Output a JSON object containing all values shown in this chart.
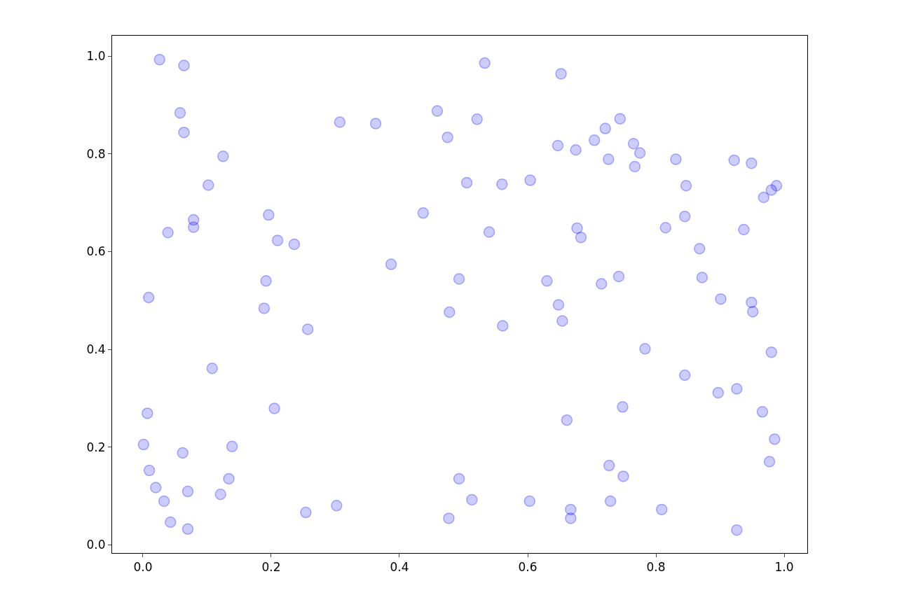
{
  "chart_data": {
    "type": "scatter",
    "marker": "circle",
    "xlim": [
      -0.048,
      1.036
    ],
    "ylim": [
      -0.017,
      1.042
    ],
    "xticks": [
      {
        "value": 0,
        "label": "0.0"
      },
      {
        "value": 0.2,
        "label": "0.2"
      },
      {
        "value": 0.4,
        "label": "0.4"
      },
      {
        "value": 0.6,
        "label": "0.6"
      },
      {
        "value": 0.8,
        "label": "0.8"
      },
      {
        "value": 1,
        "label": "1.0"
      }
    ],
    "yticks": [
      {
        "value": 0,
        "label": "0.0"
      },
      {
        "value": 0.2,
        "label": "0.2"
      },
      {
        "value": 0.4,
        "label": "0.4"
      },
      {
        "value": 0.6,
        "label": "0.6"
      },
      {
        "value": 0.8,
        "label": "0.8"
      },
      {
        "value": 1,
        "label": "1.0"
      }
    ],
    "series": [
      {
        "color": "#0000ff",
        "x": [
          0.026,
          0.064,
          0.058,
          0.064,
          0.125,
          0.102,
          0.079,
          0.079,
          0.039,
          0.009,
          0.108,
          0.007,
          0.001,
          0.062,
          0.139,
          0.01,
          0.02,
          0.033,
          0.134,
          0.07,
          0.121,
          0.043,
          0.07,
          0.196,
          0.21,
          0.236,
          0.192,
          0.189,
          0.257,
          0.205,
          0.254,
          0.302,
          0.307,
          0.363,
          0.387,
          0.437,
          0.459,
          0.475,
          0.533,
          0.521,
          0.505,
          0.54,
          0.56,
          0.604,
          0.493,
          0.478,
          0.561,
          0.493,
          0.513,
          0.477,
          0.603,
          0.652,
          0.647,
          0.675,
          0.704,
          0.721,
          0.744,
          0.726,
          0.765,
          0.775,
          0.767,
          0.677,
          0.683,
          0.63,
          0.648,
          0.654,
          0.715,
          0.742,
          0.783,
          0.661,
          0.748,
          0.727,
          0.749,
          0.667,
          0.667,
          0.729,
          0.809,
          0.831,
          0.847,
          0.815,
          0.845,
          0.868,
          0.872,
          0.901,
          0.922,
          0.949,
          0.937,
          0.988,
          0.98,
          0.968,
          0.949,
          0.951,
          0.98,
          0.845,
          0.897,
          0.926,
          0.966,
          0.985,
          0.977,
          0.926
        ],
        "values": [
          0.993,
          0.981,
          0.884,
          0.844,
          0.795,
          0.736,
          0.665,
          0.65,
          0.639,
          0.506,
          0.361,
          0.269,
          0.205,
          0.188,
          0.201,
          0.152,
          0.117,
          0.089,
          0.135,
          0.109,
          0.103,
          0.046,
          0.032,
          0.675,
          0.623,
          0.615,
          0.54,
          0.484,
          0.441,
          0.279,
          0.066,
          0.08,
          0.865,
          0.862,
          0.574,
          0.679,
          0.888,
          0.834,
          0.986,
          0.871,
          0.741,
          0.64,
          0.738,
          0.746,
          0.544,
          0.476,
          0.448,
          0.135,
          0.092,
          0.054,
          0.089,
          0.964,
          0.817,
          0.808,
          0.828,
          0.852,
          0.872,
          0.789,
          0.821,
          0.802,
          0.774,
          0.648,
          0.629,
          0.54,
          0.491,
          0.458,
          0.534,
          0.549,
          0.401,
          0.255,
          0.282,
          0.162,
          0.14,
          0.072,
          0.054,
          0.089,
          0.072,
          0.789,
          0.735,
          0.649,
          0.672,
          0.606,
          0.547,
          0.503,
          0.787,
          0.781,
          0.645,
          0.735,
          0.726,
          0.711,
          0.496,
          0.477,
          0.394,
          0.347,
          0.311,
          0.319,
          0.272,
          0.216,
          0.17,
          0.03
        ]
      }
    ]
  }
}
